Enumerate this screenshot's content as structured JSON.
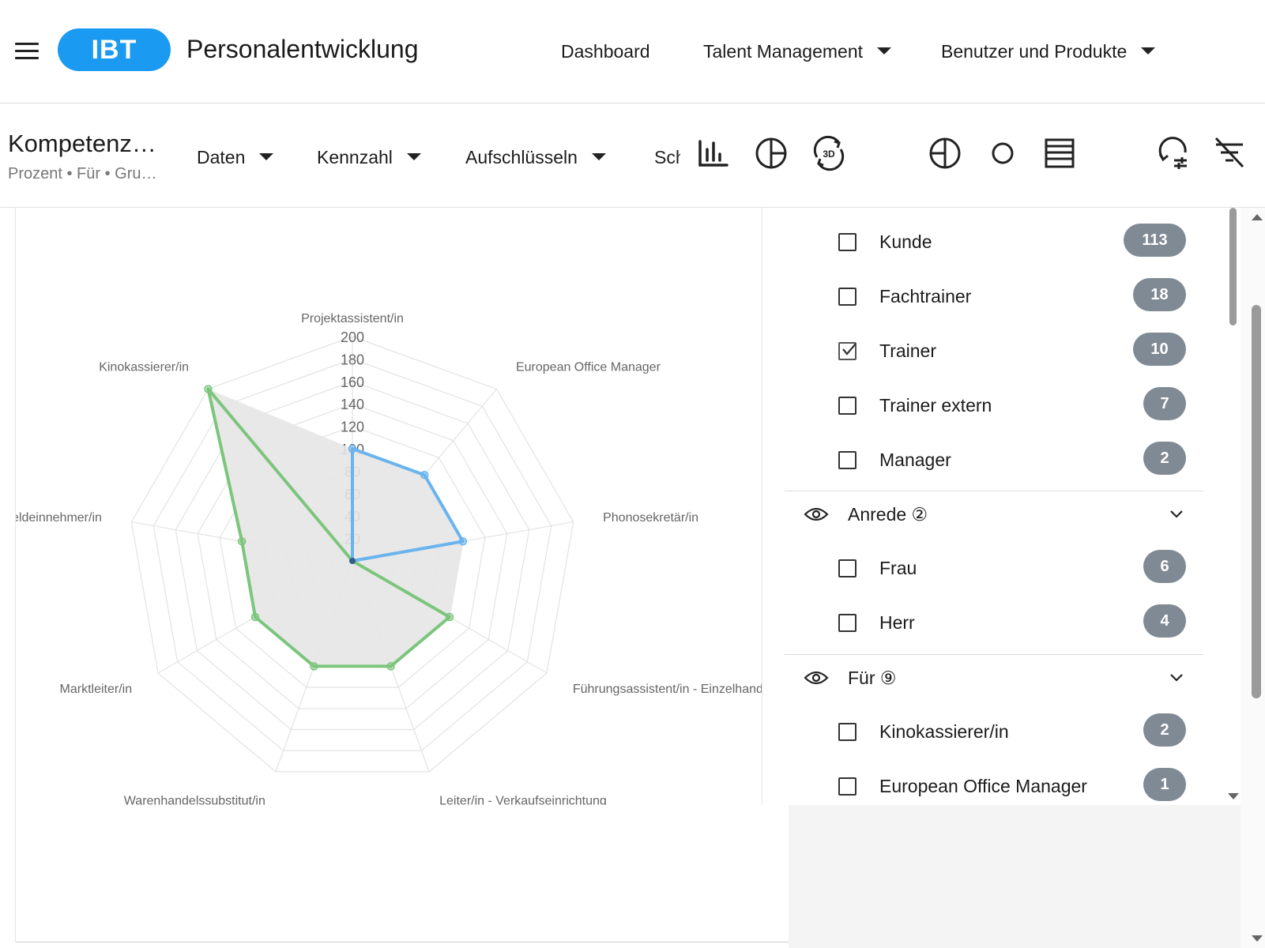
{
  "app": {
    "logo_text": "IBT",
    "title": "Personalentwicklung",
    "nav": [
      {
        "label": "Dashboard"
      },
      {
        "label": "Talent Management"
      },
      {
        "label": "Benutzer und Produkte"
      }
    ]
  },
  "toolbar": {
    "title": "Kompetenzen",
    "subtitle": "Prozent • Für • Gruppe",
    "dropdowns": [
      {
        "label": "Daten"
      },
      {
        "label": "Kennzahl"
      },
      {
        "label": "Aufschlüsseln"
      }
    ],
    "clipped_label": "Schwellwert",
    "icons": [
      "bar-chart-icon",
      "pie-chart-icon",
      "rotate-3d-icon",
      "pie-chart-alt-icon",
      "circle-icon",
      "table-list-icon",
      "reset-settings-icon",
      "clear-filter-icon"
    ]
  },
  "filters": {
    "items_top": [
      {
        "label": "Kunde",
        "count": "113",
        "checked": false
      },
      {
        "label": "Fachtrainer",
        "count": "18",
        "checked": false
      },
      {
        "label": "Trainer",
        "count": "10",
        "checked": true
      },
      {
        "label": "Trainer extern",
        "count": "7",
        "checked": false
      },
      {
        "label": "Manager",
        "count": "2",
        "checked": false
      }
    ],
    "group_anrede": {
      "label": "Anrede ②"
    },
    "items_anrede": [
      {
        "label": "Frau",
        "count": "6",
        "checked": false
      },
      {
        "label": "Herr",
        "count": "4",
        "checked": false
      }
    ],
    "group_fuer": {
      "label": "Für ⑨"
    },
    "items_fuer": [
      {
        "label": "Kinokassierer/in",
        "count": "2",
        "checked": false
      },
      {
        "label": "European Office Manager",
        "count": "1",
        "checked": false
      }
    ]
  },
  "chart_data": {
    "type": "radar",
    "categories": [
      "Projektassistent/in",
      "European Office Manager",
      "Phonosekretär/in",
      "Führungsassistent/in - Einzelhandel",
      "Leiter/in - Verkaufseinrichtung",
      "Warenhandelssubstitut/in",
      "Marktleiter/in",
      "Geldeinnehmer/in",
      "Kinokassierer/in"
    ],
    "rmin": 0,
    "rmax": 200,
    "ticks": [
      "20",
      "40",
      "60",
      "80",
      "100",
      "120",
      "140",
      "160",
      "180",
      "200"
    ],
    "series": [
      {
        "color": "#6ab4ee",
        "values": [
          100,
          100,
          100,
          0,
          0,
          0,
          0,
          0,
          0
        ]
      },
      {
        "color": "#7cc57c",
        "values": [
          0,
          0,
          0,
          100,
          100,
          100,
          100,
          100,
          200
        ]
      }
    ],
    "fill_color": "#e6e6e6",
    "grid": true
  }
}
